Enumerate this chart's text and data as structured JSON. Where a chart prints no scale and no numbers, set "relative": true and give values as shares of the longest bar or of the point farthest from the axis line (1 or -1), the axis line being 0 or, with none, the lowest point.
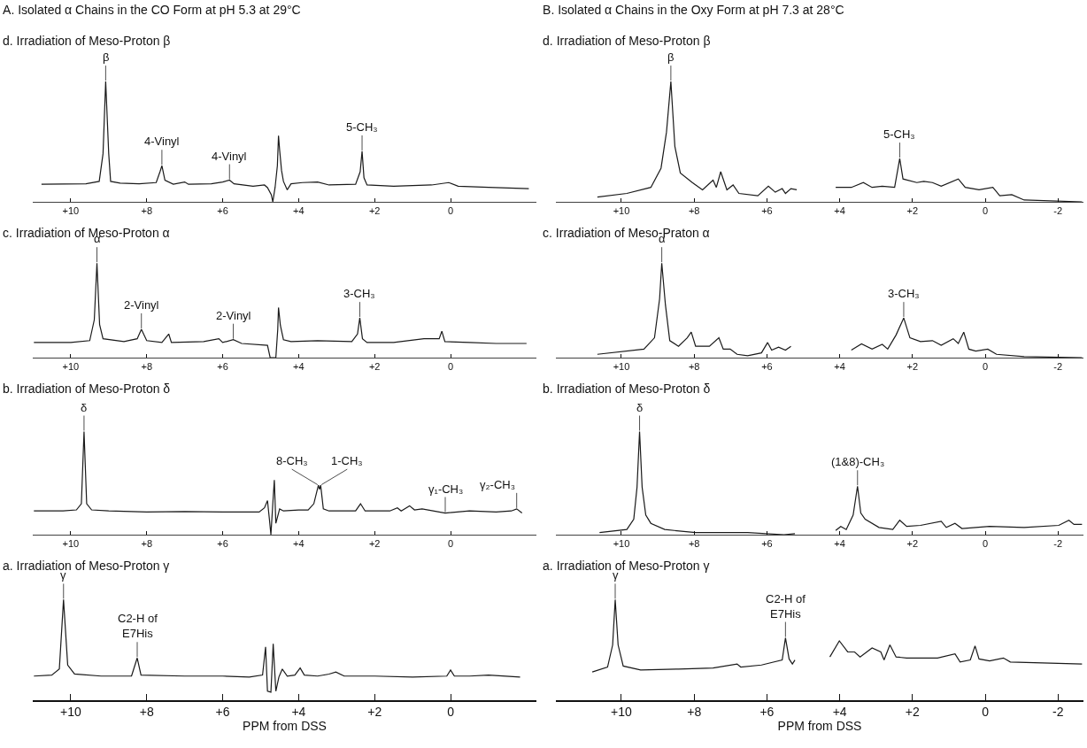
{
  "chart_data": [
    {
      "type": "line",
      "title": "A. Isolated α Chains in the CO Form at pH 5.3 at 29°C",
      "subtitle": "d. Irradiation of Meso-Proton β",
      "relative": true,
      "tick_labels": "x",
      "xlim": [
        11.0,
        -2.26
      ],
      "xticks": [
        {
          "value": 10,
          "label": "+10"
        },
        {
          "value": 8,
          "label": "+8"
        },
        {
          "value": 6,
          "label": "+6"
        },
        {
          "value": 4,
          "label": "+4"
        },
        {
          "value": 2,
          "label": "+2"
        },
        {
          "value": 0,
          "label": "0"
        }
      ],
      "color": "#1a1a1a",
      "x": [
        10.77,
        9.6,
        9.25,
        9.15,
        9.08,
        9.0,
        8.95,
        8.7,
        8.2,
        7.75,
        7.65,
        7.6,
        7.52,
        7.3,
        7.0,
        6.9,
        6.3,
        6.0,
        5.82,
        5.7,
        5.2,
        4.9,
        4.82,
        4.72,
        4.68,
        4.62,
        4.56,
        4.53,
        4.5,
        4.45,
        4.4,
        4.3,
        4.2,
        3.9,
        3.5,
        3.2,
        2.5,
        2.38,
        2.33,
        2.28,
        2.2,
        1.5,
        0.5,
        0.05,
        -0.2,
        -1.0,
        -2.06
      ],
      "values": [
        0.146,
        0.15,
        0.17,
        0.4,
        1.0,
        0.4,
        0.17,
        0.155,
        0.15,
        0.16,
        0.25,
        0.3,
        0.18,
        0.146,
        0.165,
        0.146,
        0.15,
        0.165,
        0.18,
        0.15,
        0.13,
        0.14,
        0.118,
        0.06,
        0,
        0.12,
        0.3,
        0.55,
        0.43,
        0.26,
        0.17,
        0.1,
        0.15,
        0.16,
        0.165,
        0.14,
        0.146,
        0.25,
        0.42,
        0.2,
        0.14,
        0.13,
        0.14,
        0.16,
        0.13,
        0.12,
        0.11
      ],
      "annotations": [
        {
          "text": "β",
          "x": 9.08,
          "y": 1.0
        },
        {
          "text": "4-Vinyl",
          "x": 7.6,
          "y": 0.3
        },
        {
          "text": "4-Vinyl",
          "x": 5.82,
          "y": 0.18
        },
        {
          "text": "5-CH₃",
          "x": 2.33,
          "y": 0.42
        }
      ]
    },
    {
      "type": "line",
      "title": "c. Irradiation of Meso-Proton α",
      "relative": true,
      "tick_labels": "x",
      "xlim": [
        11.0,
        -2.26
      ],
      "xticks": [
        {
          "value": 10,
          "label": "+10"
        },
        {
          "value": 8,
          "label": "+8"
        },
        {
          "value": 6,
          "label": "+6"
        },
        {
          "value": 4,
          "label": "+4"
        },
        {
          "value": 2,
          "label": "+2"
        },
        {
          "value": 0,
          "label": "0"
        }
      ],
      "color": "#1a1a1a",
      "x": [
        10.97,
        10.0,
        9.5,
        9.38,
        9.31,
        9.24,
        9.15,
        8.6,
        8.25,
        8.14,
        8.0,
        7.6,
        7.42,
        7.35,
        6.5,
        6.1,
        6.0,
        5.72,
        5.5,
        4.82,
        4.75,
        4.6,
        4.55,
        4.53,
        4.48,
        4.4,
        4.2,
        3.5,
        2.6,
        2.45,
        2.39,
        2.32,
        2.2,
        1.5,
        0.7,
        0.3,
        0.23,
        0.15,
        -0.5,
        -1.2,
        -2.0
      ],
      "values": [
        0.16,
        0.16,
        0.18,
        0.4,
        1.0,
        0.35,
        0.2,
        0.17,
        0.2,
        0.3,
        0.18,
        0.16,
        0.25,
        0.16,
        0.17,
        0.2,
        0.16,
        0.19,
        0.15,
        0.13,
        0,
        0,
        0.3,
        0.53,
        0.34,
        0.19,
        0.17,
        0.18,
        0.17,
        0.25,
        0.42,
        0.2,
        0.16,
        0.16,
        0.2,
        0.2,
        0.28,
        0.17,
        0.16,
        0.15,
        0.15
      ],
      "annotations": [
        {
          "text": "α",
          "x": 9.31,
          "y": 1.0
        },
        {
          "text": "2-Vinyl",
          "x": 8.14,
          "y": 0.3
        },
        {
          "text": "2-Vinyl",
          "x": 5.72,
          "y": 0.19
        },
        {
          "text": "3-CH₃",
          "x": 2.39,
          "y": 0.42
        }
      ]
    },
    {
      "type": "line",
      "title": "b. Irradiation of Meso-Proton δ",
      "relative": true,
      "tick_labels": "x",
      "xlim": [
        11.0,
        -2.26
      ],
      "xticks": [
        {
          "value": 10,
          "label": "+10"
        },
        {
          "value": 8,
          "label": "+8"
        },
        {
          "value": 6,
          "label": "+6"
        },
        {
          "value": 4,
          "label": "+4"
        },
        {
          "value": 2,
          "label": "+2"
        },
        {
          "value": 0,
          "label": "0"
        }
      ],
      "color": "#1a1a1a",
      "x": [
        10.97,
        10.2,
        9.85,
        9.72,
        9.65,
        9.58,
        9.45,
        9.0,
        8.0,
        7.0,
        6.0,
        5.04,
        4.9,
        4.82,
        4.77,
        4.73,
        4.68,
        4.64,
        4.6,
        4.5,
        4.4,
        4.0,
        3.75,
        3.6,
        3.48,
        3.45,
        3.42,
        3.35,
        3.2,
        2.5,
        2.37,
        2.25,
        1.6,
        1.4,
        1.3,
        1.08,
        0.95,
        0.75,
        0.14,
        -0.5,
        -1.2,
        -1.6,
        -1.74,
        -1.88
      ],
      "values": [
        0.23,
        0.23,
        0.24,
        0.3,
        1.0,
        0.3,
        0.24,
        0.23,
        0.22,
        0.225,
        0.22,
        0.22,
        0.26,
        0.33,
        0.15,
        0,
        0.3,
        0.53,
        0.11,
        0.25,
        0.23,
        0.24,
        0.24,
        0.3,
        0.48,
        0.44,
        0.48,
        0.25,
        0.23,
        0.23,
        0.3,
        0.23,
        0.23,
        0.26,
        0.23,
        0.28,
        0.24,
        0.25,
        0.21,
        0.23,
        0.22,
        0.23,
        0.25,
        0.21
      ],
      "annotations": [
        {
          "text": "δ",
          "x": 9.65,
          "y": 1.0
        },
        {
          "text": "8-CH₃",
          "x": 3.48,
          "y": 0.48
        },
        {
          "text": "1-CH₃",
          "x": 3.42,
          "y": 0.48
        },
        {
          "text": "γ₁-CH₃",
          "x": 0.14,
          "y": 0.21
        },
        {
          "text": "γ₂-CH₃",
          "x": -1.74,
          "y": 0.25
        }
      ]
    },
    {
      "type": "line",
      "title": "a. Irradiation of Meso-Proton γ",
      "xlabel": "PPM from DSS",
      "relative": true,
      "tick_labels": "x",
      "xlim": [
        11.0,
        -2.26
      ],
      "xticks": [
        {
          "value": 10,
          "label": "+10"
        },
        {
          "value": 8,
          "label": "+8"
        },
        {
          "value": 6,
          "label": "+6"
        },
        {
          "value": 4,
          "label": "+4"
        },
        {
          "value": 2,
          "label": "+2"
        },
        {
          "value": 0,
          "label": "0"
        }
      ],
      "color": "#1a1a1a",
      "x": [
        10.97,
        10.5,
        10.3,
        10.19,
        10.08,
        9.9,
        9.2,
        8.4,
        8.25,
        8.15,
        7.0,
        6.0,
        5.3,
        4.95,
        4.87,
        4.82,
        4.73,
        4.67,
        4.6,
        4.52,
        4.43,
        4.3,
        4.1,
        3.96,
        3.85,
        3.5,
        3.2,
        3.02,
        2.8,
        2.0,
        1.0,
        0.1,
        0.0,
        -0.1,
        -0.5,
        -1.0,
        -1.83
      ],
      "values": [
        0.24,
        0.25,
        0.31,
        1.0,
        0.35,
        0.26,
        0.24,
        0.24,
        0.42,
        0.25,
        0.24,
        0.24,
        0.23,
        0.25,
        0.53,
        0.09,
        0.08,
        0.56,
        0.09,
        0.23,
        0.31,
        0.24,
        0.25,
        0.32,
        0.25,
        0.24,
        0.26,
        0.28,
        0.24,
        0.24,
        0.23,
        0.24,
        0.3,
        0.24,
        0.24,
        0.25,
        0.23
      ],
      "annotations": [
        {
          "text": "γ",
          "x": 10.19,
          "y": 1.0
        },
        {
          "text": "C2-H of\nE7His",
          "x": 8.25,
          "y": 0.42
        }
      ]
    },
    {
      "type": "line",
      "title": "B. Isolated α Chains in the Oxy Form at pH 7.3 at 28°C",
      "subtitle": "d. Irradiation of Meso-Proton β",
      "relative": true,
      "tick_labels": "x",
      "xlim": [
        11.8,
        -2.7
      ],
      "xticks": [
        {
          "value": 10,
          "label": "+10"
        },
        {
          "value": 8,
          "label": "+8"
        },
        {
          "value": 6,
          "label": "+6"
        },
        {
          "value": 4,
          "label": "+4"
        },
        {
          "value": 2,
          "label": "+2"
        },
        {
          "value": 0,
          "label": "0"
        },
        {
          "value": -2,
          "label": "-2"
        }
      ],
      "color": "#1a1a1a",
      "x": [
        10.66,
        9.85,
        9.19,
        8.91,
        8.76,
        8.64,
        8.53,
        8.38,
        8.05,
        7.77,
        7.48,
        7.39,
        7.27,
        7.1,
        6.93,
        6.77,
        6.25,
        5.96,
        5.77,
        5.58,
        5.49,
        5.34,
        5.18,
        4.6,
        4.11,
        3.68,
        3.35,
        3.11,
        2.83,
        2.49,
        2.35,
        2.26,
        1.88,
        1.69,
        1.45,
        1.21,
        0.74,
        0.55,
        0.17,
        -0.21,
        -0.4,
        -0.73,
        -1.07,
        -2.66
      ],
      "values": [
        0.04,
        0.07,
        0.12,
        0.28,
        0.58,
        1.0,
        0.46,
        0.24,
        0.16,
        0.1,
        0.18,
        0.12,
        0.25,
        0.1,
        0.14,
        0.07,
        0.05,
        0.13,
        0.08,
        0.11,
        0.07,
        0.11,
        0.1,
        null,
        0.12,
        0.12,
        0.16,
        0.12,
        0.13,
        0.12,
        0.36,
        0.19,
        0.16,
        0.17,
        0.16,
        0.13,
        0.19,
        0.12,
        0.1,
        0.12,
        0.05,
        0.06,
        0.015,
        0
      ],
      "annotations": [
        {
          "text": "β",
          "x": 8.64,
          "y": 1.0
        },
        {
          "text": "5-CH₃",
          "x": 2.35,
          "y": 0.36
        }
      ]
    },
    {
      "type": "line",
      "title": "c. Irradiation of Meso-Praton α",
      "relative": true,
      "tick_labels": "x",
      "xlim": [
        11.8,
        -2.7
      ],
      "xticks": [
        {
          "value": 10,
          "label": "+10"
        },
        {
          "value": 8,
          "label": "+8"
        },
        {
          "value": 6,
          "label": "+6"
        },
        {
          "value": 4,
          "label": "+4"
        },
        {
          "value": 2,
          "label": "+2"
        },
        {
          "value": 0,
          "label": "0"
        },
        {
          "value": -2,
          "label": "-2"
        }
      ],
      "color": "#1a1a1a",
      "x": [
        10.66,
        9.38,
        9.09,
        8.95,
        8.89,
        8.79,
        8.67,
        8.43,
        8.19,
        8.08,
        7.96,
        7.58,
        7.32,
        7.2,
        7.01,
        6.82,
        6.53,
        6.15,
        5.98,
        5.87,
        5.68,
        5.49,
        5.34,
        4.5,
        3.68,
        3.4,
        3.11,
        2.83,
        2.68,
        2.45,
        2.24,
        2.07,
        1.78,
        1.45,
        1.21,
        0.88,
        0.74,
        0.59,
        0.45,
        0.26,
        -0.07,
        -0.31,
        -1.07,
        -2.66
      ],
      "values": [
        0.035,
        0.09,
        0.21,
        0.62,
        1.0,
        0.56,
        0.18,
        0.12,
        0.21,
        0.27,
        0.12,
        0.12,
        0.21,
        0.09,
        0.09,
        0.035,
        0.02,
        0.05,
        0.16,
        0.08,
        0.11,
        0.08,
        0.12,
        null,
        0.08,
        0.145,
        0.09,
        0.14,
        0.09,
        0.24,
        0.42,
        0.21,
        0.17,
        0.18,
        0.13,
        0.2,
        0.15,
        0.27,
        0.09,
        0.07,
        0.09,
        0.035,
        0.01,
        0
      ],
      "annotations": [
        {
          "text": "α",
          "x": 8.89,
          "y": 1.0
        },
        {
          "text": "3-CH₃",
          "x": 2.24,
          "y": 0.42
        }
      ]
    },
    {
      "type": "line",
      "title": "b. Irradiation of Meso-Proton δ",
      "relative": true,
      "tick_labels": "x",
      "xlim": [
        11.8,
        -2.7
      ],
      "xticks": [
        {
          "value": 10,
          "label": "+10"
        },
        {
          "value": 8,
          "label": "+8"
        },
        {
          "value": 6,
          "label": "+6"
        },
        {
          "value": 4,
          "label": "+4"
        },
        {
          "value": 2,
          "label": "+2"
        },
        {
          "value": 0,
          "label": "0"
        },
        {
          "value": -2,
          "label": "-2"
        }
      ],
      "color": "#1a1a1a",
      "x": [
        10.6,
        9.85,
        9.66,
        9.57,
        9.5,
        9.43,
        9.33,
        9.19,
        8.81,
        7.96,
        6.53,
        5.53,
        5.23,
        4.6,
        4.11,
        3.97,
        3.82,
        3.63,
        3.51,
        3.42,
        3.3,
        2.92,
        2.54,
        2.35,
        2.16,
        1.78,
        1.21,
        1.07,
        0.83,
        0.64,
        -0.12,
        -1.07,
        -2.02,
        -2.3,
        -2.44,
        -2.66
      ],
      "values": [
        0.02,
        0.05,
        0.15,
        0.46,
        1.0,
        0.46,
        0.19,
        0.11,
        0.05,
        0.02,
        0.02,
        0,
        0.01,
        null,
        0.04,
        0.08,
        0.05,
        0.19,
        0.47,
        0.21,
        0.15,
        0.07,
        0.05,
        0.14,
        0.08,
        0.09,
        0.13,
        0.07,
        0.11,
        0.06,
        0.08,
        0.07,
        0.09,
        0.14,
        0.1,
        0.1
      ],
      "annotations": [
        {
          "text": "δ",
          "x": 9.5,
          "y": 1.0
        },
        {
          "text": "(1&8)-CH₃",
          "x": 3.51,
          "y": 0.47
        }
      ]
    },
    {
      "type": "line",
      "title": "a. Irradiation of Meso-Proton γ",
      "xlabel": "PPM from DSS",
      "relative": true,
      "tick_labels": "x",
      "xlim": [
        11.8,
        -2.7
      ],
      "xticks": [
        {
          "value": 10,
          "label": "+10"
        },
        {
          "value": 8,
          "label": "+8"
        },
        {
          "value": 6,
          "label": "+6"
        },
        {
          "value": 4,
          "label": "+4"
        },
        {
          "value": 2,
          "label": "+2"
        },
        {
          "value": 0,
          "label": "0"
        },
        {
          "value": -2,
          "label": "-2"
        }
      ],
      "color": "#1a1a1a",
      "x": [
        10.8,
        10.38,
        10.24,
        10.17,
        10.09,
        9.95,
        9.47,
        8.43,
        7.48,
        6.82,
        6.72,
        6.15,
        5.58,
        5.49,
        5.39,
        5.3,
        5.23,
        4.75,
        4.27,
        4.01,
        3.78,
        3.59,
        3.44,
        3.11,
        2.87,
        2.78,
        2.62,
        2.45,
        2.16,
        1.31,
        0.83,
        0.69,
        0.41,
        0.28,
        0.17,
        -0.12,
        -0.5,
        -0.69,
        -2.66
      ],
      "values": [
        0.28,
        0.33,
        0.55,
        1.0,
        0.55,
        0.34,
        0.3,
        0.31,
        0.32,
        0.36,
        0.33,
        0.35,
        0.4,
        0.62,
        0.41,
        0.36,
        0.4,
        null,
        0.43,
        0.59,
        0.48,
        0.48,
        0.43,
        0.52,
        0.48,
        0.4,
        0.55,
        0.43,
        0.42,
        0.42,
        0.46,
        0.38,
        0.4,
        0.54,
        0.41,
        0.39,
        0.42,
        0.38,
        0.36
      ],
      "annotations": [
        {
          "text": "γ",
          "x": 10.17,
          "y": 1.0
        },
        {
          "text": "C2-H of\nE7His",
          "x": 5.49,
          "y": 0.62
        }
      ]
    }
  ]
}
